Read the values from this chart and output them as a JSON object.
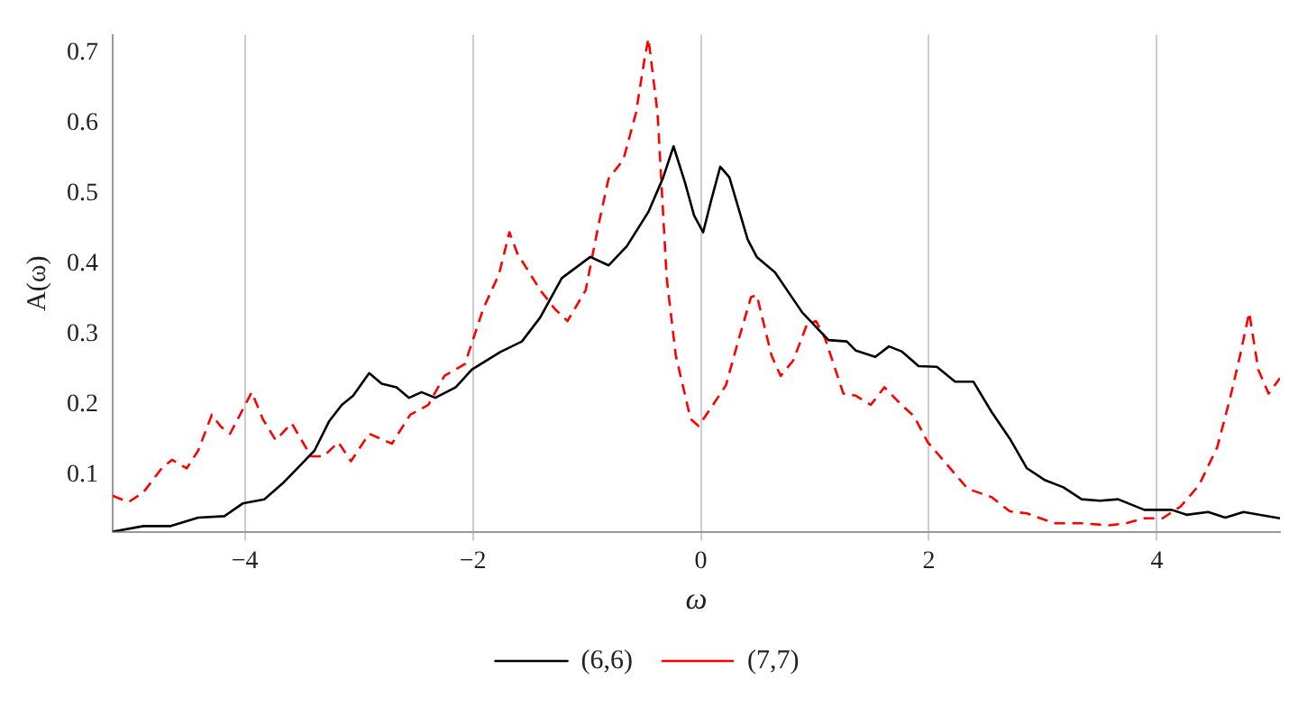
{
  "chart_data": {
    "type": "line",
    "xlabel": "ω",
    "ylabel": "A(ω)",
    "xlim": [
      -5.16,
      5.08
    ],
    "xticks": [
      -4,
      -2,
      0,
      2,
      4
    ],
    "ylim": [
      0.02,
      0.725
    ],
    "yticks": [
      0.1,
      0.2,
      0.3,
      0.4,
      0.5,
      0.6,
      0.7
    ],
    "grid": "x",
    "legend": "bottom",
    "marker": "none",
    "series": [
      {
        "name": "(6,6)",
        "color": "#000000",
        "line_style": "solid",
        "x": [
          -5.16,
          -4.89,
          -4.65,
          -4.41,
          -4.18,
          -4.02,
          -3.83,
          -3.66,
          -3.54,
          -3.39,
          -3.26,
          -3.15,
          -3.05,
          -2.91,
          -2.8,
          -2.67,
          -2.56,
          -2.45,
          -2.33,
          -2.15,
          -2.01,
          -1.76,
          -1.57,
          -1.41,
          -1.22,
          -0.97,
          -0.81,
          -0.65,
          -0.46,
          -0.33,
          -0.24,
          -0.14,
          -0.06,
          0.02,
          0.09,
          0.17,
          0.25,
          0.41,
          0.49,
          0.65,
          0.89,
          1.12,
          1.28,
          1.36,
          1.53,
          1.65,
          1.76,
          1.91,
          2.07,
          2.23,
          2.39,
          2.55,
          2.71,
          2.86,
          3.02,
          3.18,
          3.34,
          3.5,
          3.66,
          3.89,
          4.13,
          4.26,
          4.45,
          4.6,
          4.76,
          5.08
        ],
        "values": [
          0.02,
          0.028,
          0.028,
          0.04,
          0.042,
          0.06,
          0.066,
          0.09,
          0.11,
          0.135,
          0.177,
          0.2,
          0.213,
          0.245,
          0.23,
          0.225,
          0.21,
          0.218,
          0.21,
          0.225,
          0.25,
          0.275,
          0.29,
          0.324,
          0.38,
          0.41,
          0.398,
          0.425,
          0.474,
          0.523,
          0.567,
          0.516,
          0.469,
          0.445,
          0.49,
          0.538,
          0.523,
          0.435,
          0.41,
          0.388,
          0.331,
          0.292,
          0.29,
          0.277,
          0.268,
          0.283,
          0.276,
          0.255,
          0.254,
          0.233,
          0.233,
          0.19,
          0.152,
          0.11,
          0.093,
          0.083,
          0.066,
          0.064,
          0.066,
          0.051,
          0.051,
          0.044,
          0.048,
          0.04,
          0.048,
          0.039
        ]
      },
      {
        "name": "(7,7)",
        "color": "#ff0000",
        "line_style": "dashed",
        "x": [
          -5.16,
          -5.02,
          -4.89,
          -4.73,
          -4.64,
          -4.51,
          -4.41,
          -4.29,
          -4.21,
          -4.13,
          -3.94,
          -3.84,
          -3.73,
          -3.59,
          -3.42,
          -3.31,
          -3.18,
          -3.07,
          -2.91,
          -2.71,
          -2.55,
          -2.39,
          -2.25,
          -2.07,
          -1.91,
          -1.77,
          -1.68,
          -1.61,
          -1.41,
          -1.28,
          -1.17,
          -1.01,
          -0.9,
          -0.81,
          -0.68,
          -0.57,
          -0.49,
          -0.46,
          -0.38,
          -0.3,
          -0.22,
          -0.09,
          -0.02,
          0.09,
          0.22,
          0.33,
          0.44,
          0.49,
          0.62,
          0.7,
          0.81,
          0.93,
          1.01,
          1.09,
          1.25,
          1.36,
          1.49,
          1.61,
          1.76,
          1.87,
          1.99,
          2.15,
          2.34,
          2.55,
          2.71,
          2.86,
          3.1,
          3.34,
          3.58,
          3.73,
          3.89,
          4.05,
          4.21,
          4.37,
          4.53,
          4.64,
          4.73,
          4.81,
          4.89,
          4.98,
          5.08
        ],
        "values": [
          0.071,
          0.062,
          0.076,
          0.11,
          0.122,
          0.11,
          0.135,
          0.186,
          0.169,
          0.159,
          0.218,
          0.179,
          0.15,
          0.174,
          0.127,
          0.127,
          0.147,
          0.12,
          0.159,
          0.145,
          0.186,
          0.2,
          0.241,
          0.258,
          0.336,
          0.386,
          0.445,
          0.415,
          0.363,
          0.336,
          0.319,
          0.363,
          0.454,
          0.521,
          0.548,
          0.614,
          0.695,
          0.72,
          0.614,
          0.38,
          0.27,
          0.18,
          0.17,
          0.196,
          0.228,
          0.292,
          0.353,
          0.356,
          0.27,
          0.241,
          0.263,
          0.314,
          0.319,
          0.294,
          0.216,
          0.213,
          0.2,
          0.225,
          0.2,
          0.184,
          0.147,
          0.117,
          0.081,
          0.069,
          0.049,
          0.046,
          0.032,
          0.032,
          0.029,
          0.032,
          0.039,
          0.039,
          0.056,
          0.086,
          0.14,
          0.208,
          0.27,
          0.331,
          0.25,
          0.216,
          0.238
        ]
      }
    ]
  }
}
